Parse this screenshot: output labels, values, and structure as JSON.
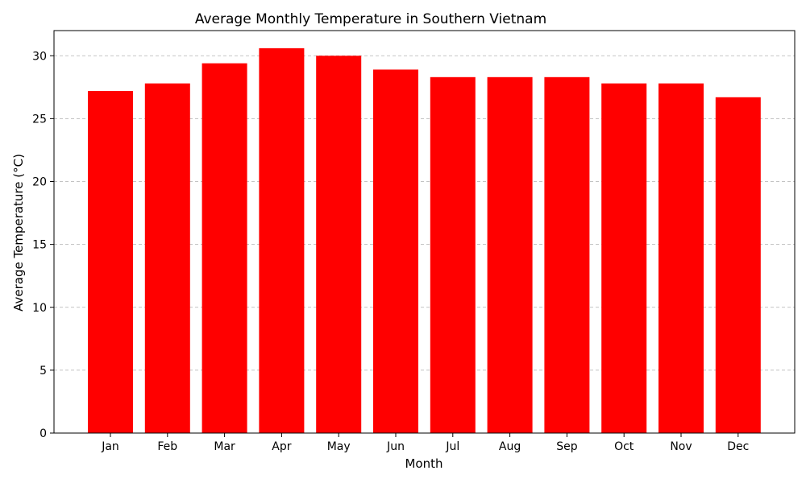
{
  "chart_data": {
    "type": "bar",
    "title": "Average Monthly Temperature in Southern Vietnam",
    "xlabel": "Month",
    "ylabel": "Average Temperature (°C)",
    "categories": [
      "Jan",
      "Feb",
      "Mar",
      "Apr",
      "May",
      "Jun",
      "Jul",
      "Aug",
      "Sep",
      "Oct",
      "Nov",
      "Dec"
    ],
    "values": [
      27.2,
      27.8,
      29.4,
      30.6,
      30.0,
      28.9,
      28.3,
      28.3,
      28.3,
      27.8,
      27.8,
      26.7
    ],
    "ylim": [
      0,
      32
    ],
    "yticks": [
      0,
      5,
      10,
      15,
      20,
      25,
      30
    ],
    "grid": true,
    "bar_color": "#ff0000",
    "grid_color": "#b0b0b0"
  }
}
